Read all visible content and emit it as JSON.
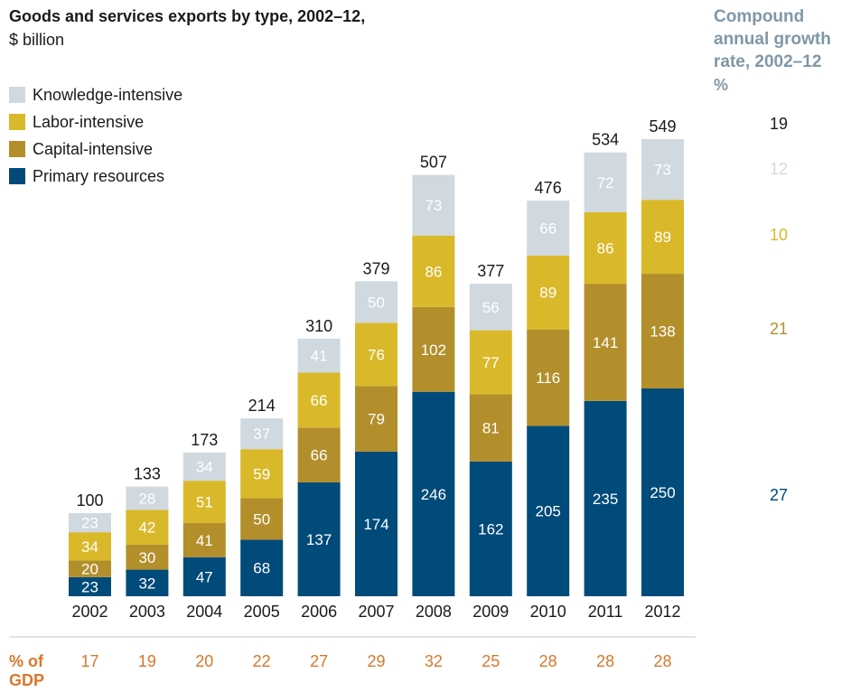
{
  "colors": {
    "knowledge": "#d0d9df",
    "labor": "#d9b92a",
    "capital": "#b38f2c",
    "primary": "#004b79",
    "gdp": "#d9772b",
    "cagr_head": "#7f97a8"
  },
  "gdp_label": "% of GDP",
  "cagr": {
    "heading": "Compound annual growth rate, 2002–12",
    "unit": "%"
  },
  "chart_data": {
    "type": "bar",
    "stacked": true,
    "title": "Goods and services exports by type, 2002–12,",
    "subtitle": "$ billion",
    "categories": [
      "2002",
      "2003",
      "2004",
      "2005",
      "2006",
      "2007",
      "2008",
      "2009",
      "2010",
      "2011",
      "2012"
    ],
    "series": [
      {
        "name": "Primary resources",
        "key": "primary",
        "values": [
          23,
          32,
          47,
          68,
          137,
          174,
          246,
          162,
          205,
          235,
          250
        ],
        "cagr": "27"
      },
      {
        "name": "Capital-intensive",
        "key": "capital",
        "values": [
          20,
          30,
          41,
          50,
          66,
          79,
          102,
          81,
          116,
          141,
          138
        ],
        "cagr": "21"
      },
      {
        "name": "Labor-intensive",
        "key": "labor",
        "values": [
          34,
          42,
          51,
          59,
          66,
          76,
          86,
          77,
          89,
          86,
          89
        ],
        "cagr": "10"
      },
      {
        "name": "Knowledge-intensive",
        "key": "knowledge",
        "values": [
          23,
          28,
          34,
          37,
          41,
          50,
          73,
          56,
          66,
          72,
          73
        ],
        "cagr": "12"
      }
    ],
    "totals": [
      100,
      133,
      173,
      214,
      310,
      379,
      507,
      377,
      476,
      534,
      549
    ],
    "total_cagr": "19",
    "gdp_share": [
      "17",
      "19",
      "20",
      "22",
      "27",
      "29",
      "32",
      "25",
      "28",
      "28",
      "28"
    ],
    "legend_order": [
      "Knowledge-intensive",
      "Labor-intensive",
      "Capital-intensive",
      "Primary resources"
    ]
  }
}
